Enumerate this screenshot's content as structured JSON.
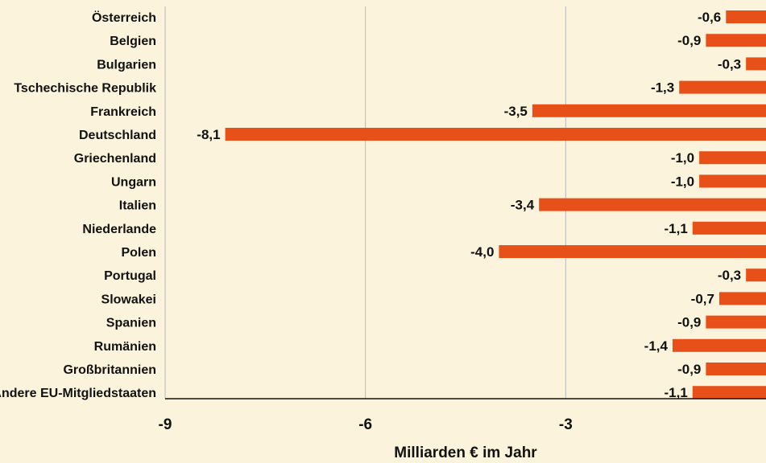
{
  "chart_data": {
    "type": "bar",
    "orientation": "horizontal",
    "categories": [
      "Österreich",
      "Belgien",
      "Bulgarien",
      "Tschechische Republik",
      "Frankreich",
      "Deutschland",
      "Griechenland",
      "Ungarn",
      "Italien",
      "Niederlande",
      "Polen",
      "Portugal",
      "Slowakei",
      "Spanien",
      "Rumänien",
      "Großbritannien",
      "Andere EU-Mitgliedstaaten"
    ],
    "values": [
      -0.6,
      -0.9,
      -0.3,
      -1.3,
      -3.5,
      -8.1,
      -1.0,
      -1.0,
      -3.4,
      -1.1,
      -4.0,
      -0.3,
      -0.7,
      -0.9,
      -1.4,
      -0.9,
      -1.1
    ],
    "value_labels": [
      "-0,6",
      "-0,9",
      "-0,3",
      "-1,3",
      "-3,5",
      "-8,1",
      "-1,0",
      "-1,0",
      "-3,4",
      "-1,1",
      "-4,0",
      "-0,3",
      "-0,7",
      "-0,9",
      "-1,4",
      "-0,9",
      "-1,1"
    ],
    "xlim": [
      -9,
      0
    ],
    "xticks": [
      -9,
      -6,
      -3
    ],
    "xtick_labels": [
      "-9",
      "-6",
      "-3"
    ],
    "xlabel": "Milliarden € im Jahr",
    "ylabel": "",
    "title": "",
    "grid": "vertical",
    "bar_color": "#e8501a",
    "grid_color": "#b9b9b9",
    "axis_color": "#111111",
    "background": "#fbf3db"
  }
}
